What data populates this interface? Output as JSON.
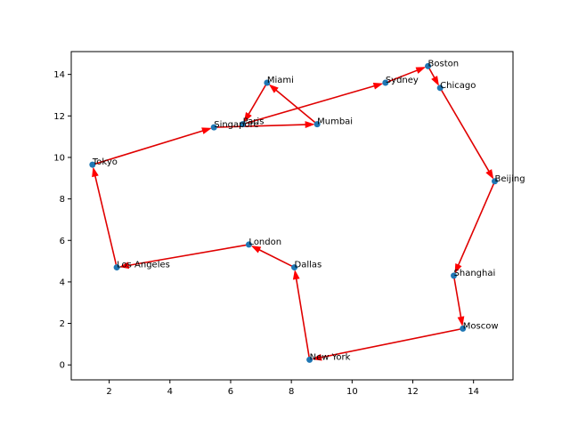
{
  "chart_data": {
    "type": "scatter",
    "title": "",
    "xlabel": "",
    "ylabel": "",
    "xlim": [
      0.75,
      15.3
    ],
    "ylim": [
      -0.72,
      15.1
    ],
    "xticks": [
      2,
      4,
      6,
      8,
      10,
      12,
      14
    ],
    "yticks": [
      0,
      2,
      4,
      6,
      8,
      10,
      12,
      14
    ],
    "grid": false,
    "point_color": "#1f77b4",
    "route_color": "#ff0000",
    "points": [
      {
        "name": "New York",
        "x": 8.6,
        "y": 0.25
      },
      {
        "name": "Dallas",
        "x": 8.1,
        "y": 4.7
      },
      {
        "name": "London",
        "x": 6.6,
        "y": 5.8
      },
      {
        "name": "Los Angeles",
        "x": 2.25,
        "y": 4.7
      },
      {
        "name": "Tokyo",
        "x": 1.45,
        "y": 9.65
      },
      {
        "name": "Singapore",
        "x": 5.45,
        "y": 11.45
      },
      {
        "name": "Mumbai",
        "x": 8.85,
        "y": 11.6
      },
      {
        "name": "Miami",
        "x": 7.2,
        "y": 13.6
      },
      {
        "name": "Paris",
        "x": 6.4,
        "y": 11.6
      },
      {
        "name": "Sydney",
        "x": 11.1,
        "y": 13.6
      },
      {
        "name": "Boston",
        "x": 12.5,
        "y": 14.4
      },
      {
        "name": "Chicago",
        "x": 12.9,
        "y": 13.35
      },
      {
        "name": "Beijing",
        "x": 14.7,
        "y": 8.85
      },
      {
        "name": "Shanghai",
        "x": 13.35,
        "y": 4.3
      },
      {
        "name": "Moscow",
        "x": 13.65,
        "y": 1.75
      }
    ],
    "route": [
      "New York",
      "Dallas",
      "London",
      "Los Angeles",
      "Tokyo",
      "Singapore",
      "Mumbai",
      "Miami",
      "Paris",
      "Sydney",
      "Boston",
      "Chicago",
      "Beijing",
      "Shanghai",
      "Moscow",
      "New York"
    ]
  }
}
